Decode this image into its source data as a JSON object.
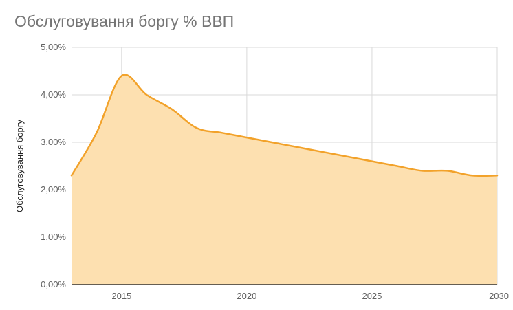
{
  "chart_data": {
    "type": "area",
    "title": "Обслуговування боргу % ВВП",
    "xlabel": "",
    "ylabel": "Обслуговування боргу",
    "xlim": [
      2013,
      2030
    ],
    "ylim": [
      0,
      5
    ],
    "x_ticks": [
      2015,
      2020,
      2025,
      2030
    ],
    "x_tick_labels": [
      "2015",
      "2020",
      "2025",
      "2030"
    ],
    "y_ticks": [
      0,
      1,
      2,
      3,
      4,
      5
    ],
    "y_tick_labels": [
      "0,00%",
      "1,00%",
      "2,00%",
      "3,00%",
      "4,00%",
      "5,00%"
    ],
    "grid": true,
    "legend": "none",
    "colors": {
      "line": "#f2a22a",
      "fill": "#fde0b0",
      "grid": "#d9d9d9"
    },
    "series": [
      {
        "x": [
          2013,
          2014,
          2015,
          2016,
          2017,
          2018,
          2019,
          2020,
          2021,
          2022,
          2023,
          2024,
          2025,
          2026,
          2027,
          2028,
          2029,
          2030
        ],
        "values": [
          2.3,
          3.2,
          4.4,
          4.0,
          3.7,
          3.3,
          3.2,
          3.1,
          3.0,
          2.9,
          2.8,
          2.7,
          2.6,
          2.5,
          2.4,
          2.4,
          2.3,
          2.3
        ]
      }
    ]
  }
}
